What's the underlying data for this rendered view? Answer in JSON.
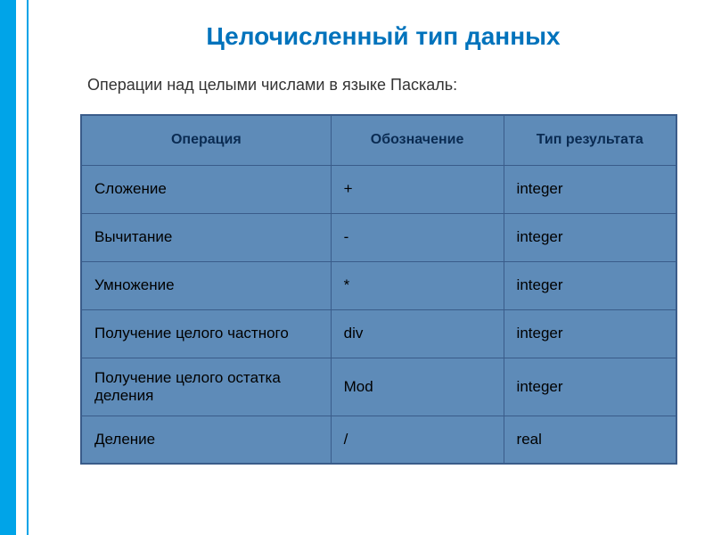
{
  "title": "Целочисленный тип данных",
  "subtitle": "Операции над целыми числами в языке Паскаль:",
  "table": {
    "headers": [
      "Операция",
      "Обозначение",
      "Тип результата"
    ],
    "rows": [
      [
        "Сложение",
        "+",
        "integer"
      ],
      [
        "Вычитание",
        "-",
        "integer"
      ],
      [
        "Умножение",
        "*",
        "integer"
      ],
      [
        "Получение целого частного",
        "div",
        "integer"
      ],
      [
        "Получение целого остатка деления",
        "Mod",
        "integer"
      ],
      [
        "Деление",
        "/",
        "real"
      ]
    ]
  },
  "colors": {
    "accent_blue": "#00a4e8",
    "title_blue": "#0073bc",
    "table_bg": "#5e8bb8",
    "border": "#3a5c8a"
  }
}
